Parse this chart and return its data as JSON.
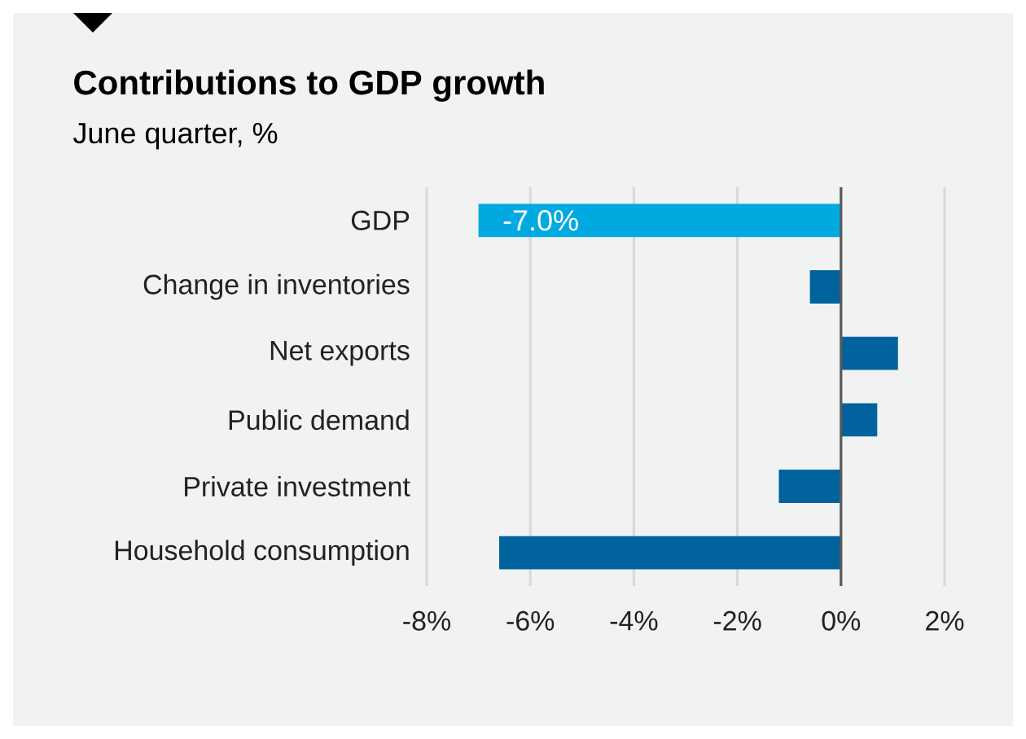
{
  "chart_data": {
    "type": "bar",
    "orientation": "horizontal",
    "title": "Contributions to GDP growth",
    "subtitle": "June quarter, %",
    "categories": [
      "GDP",
      "Change in inventories",
      "Net exports",
      "Public demand",
      "Private investment",
      "Household consumption"
    ],
    "values": [
      -7.0,
      -0.6,
      1.1,
      0.7,
      -1.2,
      -6.6
    ],
    "colors": [
      "#00a9e0",
      "#00639e",
      "#00639e",
      "#00639e",
      "#00639e",
      "#00639e"
    ],
    "value_labels": [
      "-7.0%",
      null,
      null,
      null,
      null,
      null
    ],
    "xlim": [
      -8,
      2
    ],
    "xticks": [
      {
        "value": -8,
        "label": "-8%"
      },
      {
        "value": -6,
        "label": "-6%"
      },
      {
        "value": -4,
        "label": "-4%"
      },
      {
        "value": -2,
        "label": "-2%"
      },
      {
        "value": 0,
        "label": "0%"
      },
      {
        "value": 2,
        "label": "2%"
      }
    ],
    "grid": "x"
  }
}
